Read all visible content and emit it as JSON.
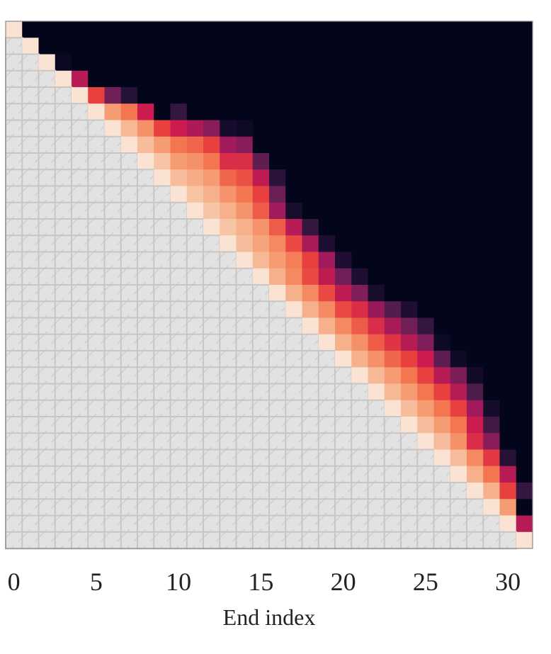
{
  "chart_data": {
    "type": "heatmap",
    "title": "",
    "xlabel": "End index",
    "ylabel": "",
    "size": 32,
    "x_ticks": [
      0,
      5,
      10,
      15,
      20,
      25,
      30
    ],
    "x_tick_labels": [
      "0",
      "5",
      "10",
      "15",
      "20",
      "25",
      "30"
    ],
    "colormap": "rocket",
    "value_range": [
      0,
      1
    ],
    "mask": "lower triangle (below diagonal) hatched grey",
    "mask_color": "#e0e0e0",
    "background_value": 0,
    "rows_from_diagonal": [
      [
        1
      ],
      [
        1
      ],
      [
        1,
        0.03
      ],
      [
        1,
        0.45
      ],
      [
        1,
        0.6,
        0.3,
        0.12
      ],
      [
        1,
        0.8,
        0.7,
        0.5,
        0,
        0.15
      ],
      [
        1,
        0.87,
        0.77,
        0.6,
        0.5,
        0.43,
        0.35,
        0.07,
        0.04
      ],
      [
        1,
        0.88,
        0.8,
        0.7,
        0.67,
        0.6,
        0.4,
        0.35
      ],
      [
        1,
        0.9,
        0.8,
        0.77,
        0.7,
        0.55,
        0.55,
        0.25
      ],
      [
        1,
        0.88,
        0.84,
        0.8,
        0.67,
        0.63,
        0.47,
        0.13
      ],
      [
        1,
        0.9,
        0.85,
        0.78,
        0.7,
        0.6,
        0.28
      ],
      [
        1,
        0.9,
        0.85,
        0.78,
        0.65,
        0.4,
        0.08
      ],
      [
        1,
        0.9,
        0.85,
        0.78,
        0.65,
        0.45,
        0.15
      ],
      [
        1,
        0.88,
        0.82,
        0.75,
        0.62,
        0.42,
        0.1
      ],
      [
        1,
        0.87,
        0.8,
        0.72,
        0.6,
        0.4,
        0.1
      ],
      [
        1,
        0.85,
        0.75,
        0.62,
        0.47,
        0.3,
        0.1
      ],
      [
        1,
        0.85,
        0.75,
        0.62,
        0.47,
        0.33,
        0.08
      ],
      [
        1,
        0.85,
        0.75,
        0.62,
        0.55,
        0.38,
        0.22,
        0.1
      ],
      [
        1,
        0.85,
        0.75,
        0.65,
        0.55,
        0.42,
        0.3,
        0.15
      ],
      [
        1,
        0.85,
        0.77,
        0.65,
        0.57,
        0.45,
        0.33,
        0.04
      ],
      [
        1,
        0.85,
        0.77,
        0.67,
        0.6,
        0.5,
        0.25,
        0.05
      ],
      [
        1,
        0.87,
        0.8,
        0.7,
        0.6,
        0.45,
        0.32,
        0.06
      ],
      [
        1,
        0.87,
        0.8,
        0.7,
        0.6,
        0.45,
        0.2
      ],
      [
        1,
        0.88,
        0.8,
        0.7,
        0.6,
        0.4,
        0.07
      ],
      [
        1,
        0.88,
        0.8,
        0.7,
        0.5,
        0.18
      ],
      [
        1,
        0.88,
        0.77,
        0.55,
        0.35
      ],
      [
        1,
        0.88,
        0.75,
        0.58,
        0.12
      ],
      [
        1,
        0.85,
        0.7,
        0.45,
        0
      ],
      [
        1,
        0.85,
        0.6,
        0.15
      ],
      [
        1,
        0.8,
        0
      ],
      [
        1,
        0.45
      ],
      [
        1
      ]
    ]
  }
}
